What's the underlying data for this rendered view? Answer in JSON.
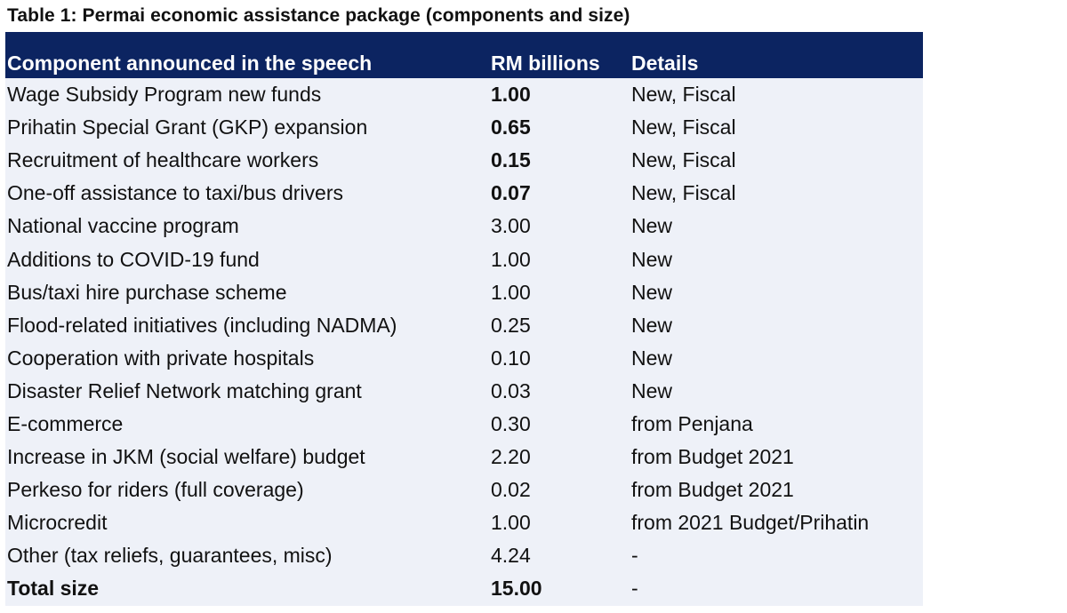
{
  "caption": "Table 1: Permai economic assistance package (components and size)",
  "table": {
    "headers": {
      "component": "Component announced in the speech",
      "rm": "RM billions",
      "details": "Details"
    },
    "header_bg": "#0c2461",
    "row_bg": "#eef1f8",
    "rows": [
      {
        "component": "Wage Subsidy Program new funds",
        "rm": "1.00",
        "details": "New, Fiscal",
        "rm_bold": true
      },
      {
        "component": "Prihatin Special Grant (GKP) expansion",
        "rm": "0.65",
        "details": "New, Fiscal",
        "rm_bold": true
      },
      {
        "component": "Recruitment of healthcare workers",
        "rm": "0.15",
        "details": "New, Fiscal",
        "rm_bold": true
      },
      {
        "component": "One-off assistance to taxi/bus drivers",
        "rm": "0.07",
        "details": "New, Fiscal",
        "rm_bold": true
      },
      {
        "component": "National vaccine program",
        "rm": "3.00",
        "details": "New"
      },
      {
        "component": "Additions to COVID-19 fund",
        "rm": "1.00",
        "details": "New"
      },
      {
        "component": "Bus/taxi hire purchase scheme",
        "rm": "1.00",
        "details": "New"
      },
      {
        "component": "Flood-related initiatives (including NADMA)",
        "rm": "0.25",
        "details": "New"
      },
      {
        "component": "Cooperation with private hospitals",
        "rm": "0.10",
        "details": "New"
      },
      {
        "component": "Disaster Relief Network matching grant",
        "rm": "0.03",
        "details": "New"
      },
      {
        "component": "E-commerce",
        "rm": "0.30",
        "details": "from Penjana"
      },
      {
        "component": "Increase in JKM (social welfare) budget",
        "rm": "2.20",
        "details": "from Budget 2021"
      },
      {
        "component": "Perkeso for riders (full coverage)",
        "rm": "0.02",
        "details": "from Budget 2021"
      },
      {
        "component": "Microcredit",
        "rm": "1.00",
        "details": "from 2021 Budget/Prihatin"
      },
      {
        "component": "Other (tax reliefs, guarantees, misc)",
        "rm": "4.24",
        "details": "-"
      },
      {
        "component": "Total size",
        "rm": "15.00",
        "details": "-",
        "total": true
      }
    ]
  }
}
